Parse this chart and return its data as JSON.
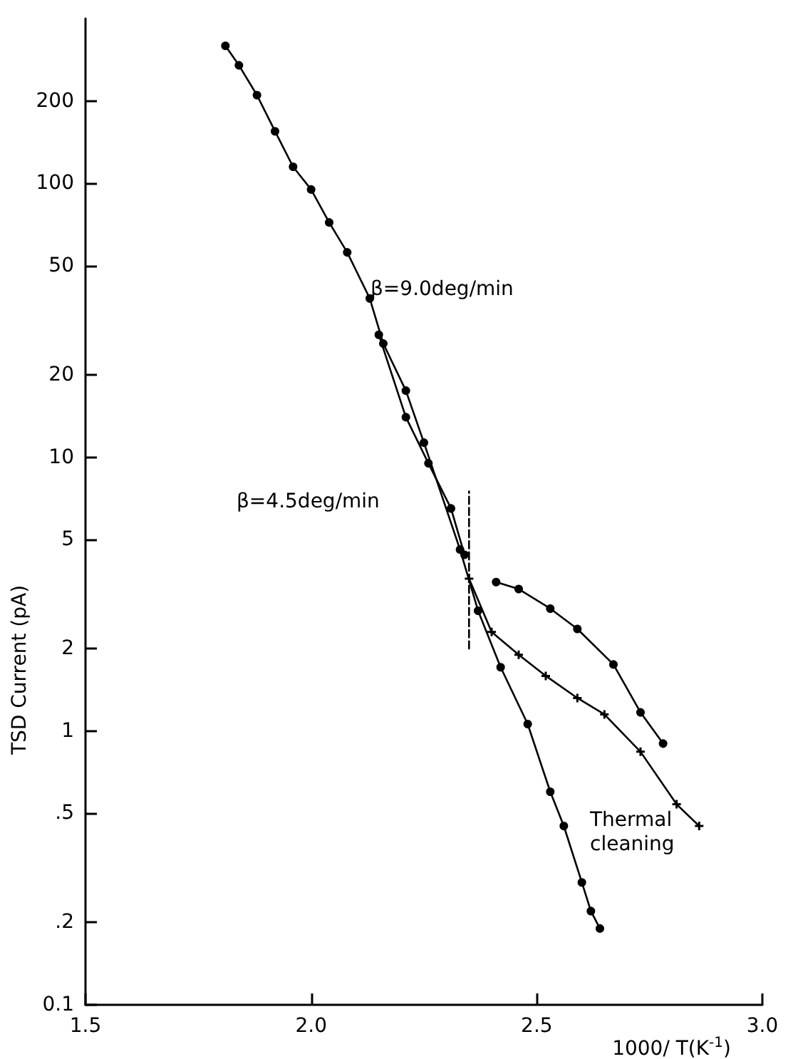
{
  "chart_data": {
    "type": "line",
    "xlabel": "1000/ T(K$^{-1}$)",
    "ylabel": "TSD Current (pA)",
    "log": "y",
    "grid": false,
    "xlim": [
      1.5,
      3.0
    ],
    "xticks": [
      1.5,
      {
        "value": 2.0,
        "label": "2.0"
      },
      2.5,
      {
        "value": 3.0,
        "label": "3.0"
      }
    ],
    "ylim": [
      0.1,
      400
    ],
    "yticks": [
      {
        "value": 0.1,
        "label": "0.1"
      },
      {
        "value": 0.2,
        "label": ".2"
      },
      {
        "value": 0.5,
        "label": ".5"
      },
      1,
      2,
      5,
      10,
      20,
      50,
      100,
      200
    ],
    "series": [
      {
        "color": "#000000",
        "marker": "circle",
        "line_style": "solid",
        "x": [
          1.81,
          1.84,
          1.88,
          1.92,
          1.96,
          2.0,
          2.04,
          2.08,
          2.13,
          2.16,
          2.21,
          2.25,
          2.33,
          2.37,
          2.42,
          2.48,
          2.53,
          2.56,
          2.6,
          2.62,
          2.64
        ],
        "values": [
          318,
          270,
          210,
          155,
          115,
          95,
          72,
          56,
          38,
          26,
          17.5,
          11.3,
          4.6,
          2.75,
          1.71,
          1.06,
          0.6,
          0.45,
          0.28,
          0.22,
          0.19
        ]
      },
      {
        "color": "#000000",
        "marker": "circle",
        "line_style": "solid",
        "x": [
          2.15,
          2.21,
          2.26,
          2.31,
          2.34
        ],
        "values": [
          28,
          14,
          9.5,
          6.5,
          4.4
        ]
      },
      {
        "color": "#000000",
        "marker": "circle",
        "line_style": "solid",
        "x": [
          2.41,
          2.46,
          2.53,
          2.59,
          2.67,
          2.73,
          2.78
        ],
        "values": [
          3.5,
          3.3,
          2.8,
          2.36,
          1.75,
          1.17,
          0.9
        ]
      },
      {
        "color": "#000000",
        "marker": "cross",
        "line_style": "solid",
        "x": [
          2.35,
          2.4,
          2.46,
          2.52,
          2.59,
          2.65,
          2.73,
          2.81,
          2.86
        ],
        "values": [
          3.6,
          2.3,
          1.9,
          1.59,
          1.32,
          1.15,
          0.84,
          0.54,
          0.45
        ]
      },
      {
        "color": "#000000",
        "marker": "none",
        "line_style": "dashed",
        "x": [
          2.35,
          2.35
        ],
        "values": [
          2,
          7.5
        ]
      }
    ],
    "annotations": [
      "β=9.0deg/min",
      "β=4.5deg/min",
      "Thermal\ncleaning"
    ]
  }
}
